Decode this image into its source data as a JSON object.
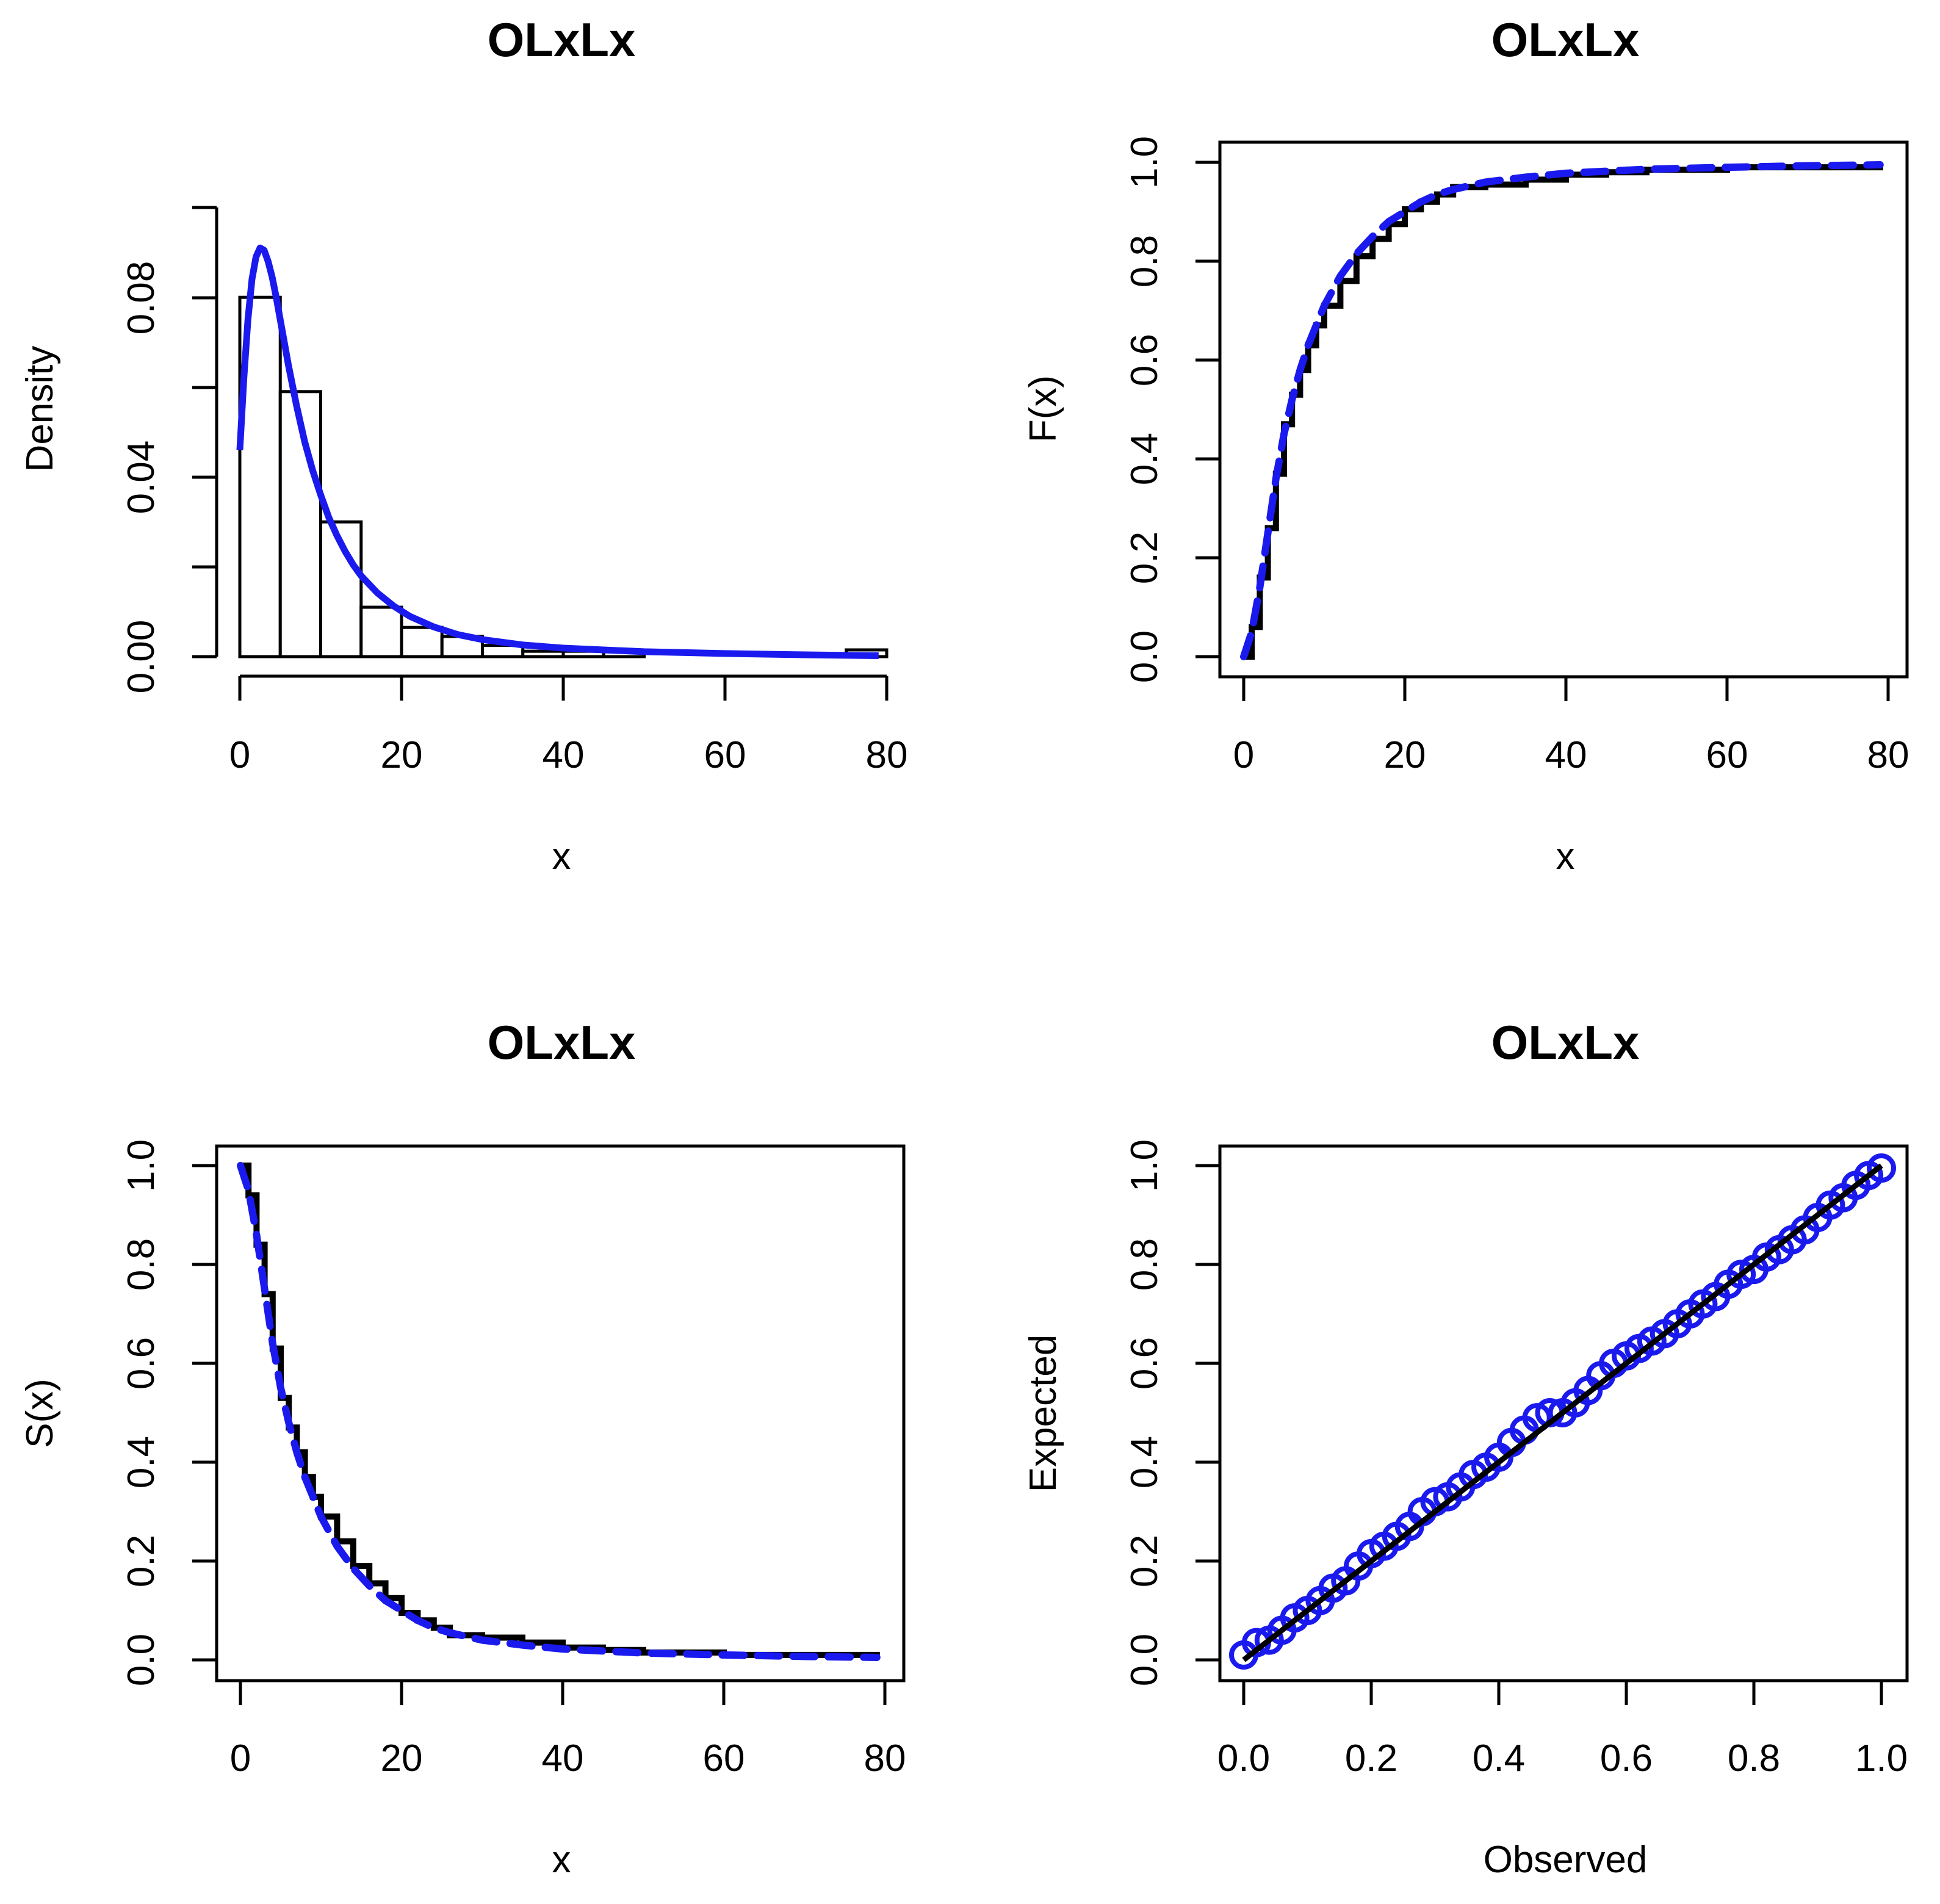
{
  "colors": {
    "fit": "#1a1aee",
    "empirical": "#000000",
    "background": "#ffffff"
  },
  "chart_data": [
    {
      "type": "histogram",
      "title": "OLxLx",
      "xlabel": "x",
      "ylabel": "Density",
      "xlim": [
        0,
        80
      ],
      "ylim": [
        0,
        0.1
      ],
      "xticks": [
        "0",
        "20",
        "40",
        "60",
        "80"
      ],
      "yticks": [
        "0.00",
        "0.04",
        "0.08"
      ],
      "bins": [
        {
          "from": 0,
          "to": 5,
          "density": 0.08
        },
        {
          "from": 5,
          "to": 10,
          "density": 0.059
        },
        {
          "from": 10,
          "to": 15,
          "density": 0.03
        },
        {
          "from": 15,
          "to": 20,
          "density": 0.011
        },
        {
          "from": 20,
          "to": 25,
          "density": 0.0065
        },
        {
          "from": 25,
          "to": 30,
          "density": 0.0045
        },
        {
          "from": 30,
          "to": 35,
          "density": 0.0025
        },
        {
          "from": 35,
          "to": 40,
          "density": 0.0012
        },
        {
          "from": 40,
          "to": 45,
          "density": 0.0012
        },
        {
          "from": 45,
          "to": 50,
          "density": 0.0012
        },
        {
          "from": 75,
          "to": 80,
          "density": 0.0015
        }
      ],
      "fit_curve": {
        "name": "OLxLx density",
        "x": [
          0,
          0.5,
          1,
          1.5,
          2,
          2.5,
          3,
          3.5,
          4,
          4.5,
          5,
          6,
          7,
          8,
          9,
          10,
          11,
          12,
          13,
          14,
          15,
          17,
          19,
          21,
          24,
          27,
          30,
          35,
          40,
          50,
          60,
          70,
          79
        ],
        "y": [
          0.046,
          0.062,
          0.075,
          0.084,
          0.089,
          0.091,
          0.0905,
          0.088,
          0.0845,
          0.08,
          0.075,
          0.065,
          0.056,
          0.048,
          0.0415,
          0.036,
          0.031,
          0.027,
          0.0235,
          0.0205,
          0.018,
          0.0142,
          0.0113,
          0.009,
          0.0066,
          0.0049,
          0.0038,
          0.0026,
          0.0019,
          0.0011,
          0.0007,
          0.0004,
          0.0002
        ]
      }
    },
    {
      "type": "line",
      "title": "OLxLx",
      "xlabel": "x",
      "ylabel": "F(x)",
      "xlim": [
        0,
        80
      ],
      "ylim": [
        0,
        1
      ],
      "xticks": [
        "0",
        "20",
        "40",
        "60",
        "80"
      ],
      "yticks": [
        "0.0",
        "0.2",
        "0.4",
        "0.6",
        "0.8",
        "1.0"
      ],
      "series": [
        {
          "name": "Empirical CDF",
          "x": [
            0,
            1,
            2,
            3,
            4,
            5,
            6,
            7,
            8,
            9,
            10,
            12,
            14,
            16,
            18,
            20,
            22,
            24,
            26,
            30,
            35,
            40,
            45,
            50,
            60,
            70,
            79
          ],
          "y": [
            0,
            0.06,
            0.16,
            0.26,
            0.37,
            0.47,
            0.53,
            0.58,
            0.63,
            0.67,
            0.71,
            0.76,
            0.81,
            0.845,
            0.875,
            0.905,
            0.92,
            0.935,
            0.95,
            0.955,
            0.965,
            0.975,
            0.98,
            0.985,
            0.99,
            0.99,
            0.995
          ]
        },
        {
          "name": "OLxLx CDF",
          "x": [
            0,
            1,
            2,
            3,
            4,
            5,
            6,
            7,
            8,
            9,
            10,
            12,
            14,
            16,
            18,
            20,
            22,
            24,
            26,
            30,
            35,
            40,
            45,
            50,
            60,
            70,
            79
          ],
          "y": [
            0,
            0.05,
            0.14,
            0.25,
            0.36,
            0.45,
            0.52,
            0.58,
            0.63,
            0.67,
            0.71,
            0.77,
            0.815,
            0.85,
            0.88,
            0.9,
            0.92,
            0.935,
            0.945,
            0.96,
            0.97,
            0.978,
            0.982,
            0.986,
            0.99,
            0.993,
            0.995
          ]
        }
      ]
    },
    {
      "type": "line",
      "title": "OLxLx",
      "xlabel": "x",
      "ylabel": "S(x)",
      "xlim": [
        0,
        80
      ],
      "ylim": [
        0,
        1
      ],
      "xticks": [
        "0",
        "20",
        "40",
        "60",
        "80"
      ],
      "yticks": [
        "0.0",
        "0.2",
        "0.4",
        "0.6",
        "0.8",
        "1.0"
      ],
      "series": [
        {
          "name": "Empirical survival",
          "x": [
            0,
            1,
            2,
            3,
            4,
            5,
            6,
            7,
            8,
            9,
            10,
            12,
            14,
            16,
            18,
            20,
            22,
            24,
            26,
            30,
            35,
            40,
            45,
            50,
            60,
            70,
            79
          ],
          "y": [
            1,
            0.94,
            0.84,
            0.74,
            0.63,
            0.53,
            0.47,
            0.42,
            0.37,
            0.33,
            0.29,
            0.24,
            0.19,
            0.155,
            0.125,
            0.095,
            0.08,
            0.065,
            0.05,
            0.045,
            0.035,
            0.025,
            0.02,
            0.015,
            0.01,
            0.01,
            0.005
          ]
        },
        {
          "name": "OLxLx survival",
          "x": [
            0,
            1,
            2,
            3,
            4,
            5,
            6,
            7,
            8,
            9,
            10,
            12,
            14,
            16,
            18,
            20,
            22,
            24,
            26,
            30,
            35,
            40,
            45,
            50,
            60,
            70,
            79
          ],
          "y": [
            1,
            0.95,
            0.86,
            0.75,
            0.64,
            0.55,
            0.48,
            0.42,
            0.37,
            0.33,
            0.29,
            0.23,
            0.185,
            0.15,
            0.12,
            0.1,
            0.08,
            0.065,
            0.055,
            0.04,
            0.03,
            0.022,
            0.018,
            0.014,
            0.01,
            0.007,
            0.005
          ]
        }
      ]
    },
    {
      "type": "scatter",
      "title": "OLxLx",
      "xlabel": "Observed",
      "ylabel": "Expected",
      "xlim": [
        0,
        1
      ],
      "ylim": [
        0,
        1
      ],
      "xticks": [
        "0.0",
        "0.2",
        "0.4",
        "0.6",
        "0.8",
        "1.0"
      ],
      "yticks": [
        "0.0",
        "0.2",
        "0.4",
        "0.6",
        "0.8",
        "1.0"
      ],
      "reference_line": {
        "from": [
          0,
          0
        ],
        "to": [
          1,
          1
        ]
      },
      "points": {
        "x": [
          0.0,
          0.02,
          0.04,
          0.06,
          0.08,
          0.1,
          0.12,
          0.14,
          0.16,
          0.18,
          0.2,
          0.22,
          0.24,
          0.26,
          0.28,
          0.3,
          0.32,
          0.34,
          0.36,
          0.38,
          0.4,
          0.42,
          0.44,
          0.46,
          0.48,
          0.5,
          0.52,
          0.54,
          0.56,
          0.58,
          0.6,
          0.62,
          0.64,
          0.66,
          0.68,
          0.7,
          0.72,
          0.74,
          0.76,
          0.78,
          0.8,
          0.82,
          0.84,
          0.86,
          0.88,
          0.9,
          0.92,
          0.94,
          0.96,
          0.98,
          1.0
        ],
        "y": [
          0.01,
          0.035,
          0.04,
          0.06,
          0.085,
          0.1,
          0.12,
          0.145,
          0.16,
          0.19,
          0.215,
          0.23,
          0.25,
          0.27,
          0.3,
          0.32,
          0.33,
          0.35,
          0.375,
          0.39,
          0.41,
          0.44,
          0.465,
          0.49,
          0.5,
          0.5,
          0.52,
          0.545,
          0.575,
          0.6,
          0.615,
          0.63,
          0.645,
          0.66,
          0.68,
          0.7,
          0.72,
          0.735,
          0.76,
          0.78,
          0.79,
          0.815,
          0.83,
          0.85,
          0.87,
          0.895,
          0.92,
          0.935,
          0.96,
          0.98,
          0.995
        ]
      }
    }
  ]
}
